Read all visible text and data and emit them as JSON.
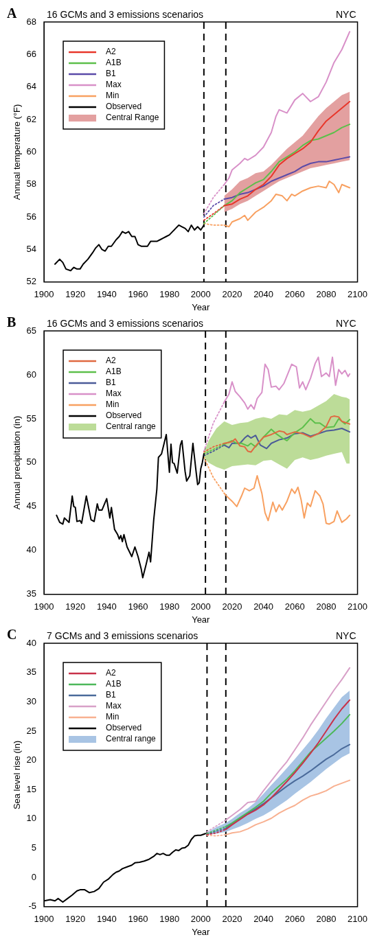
{
  "chart_data": [
    {
      "type": "line",
      "title": "16 GCMs and 3 emissions scenarios",
      "subtitle": "NYC",
      "annotations": [
        "A"
      ],
      "xlabel": "Year",
      "ylabel": "Annual temperature (°F)",
      "xlim": [
        1900,
        2100
      ],
      "xticks": [
        1900,
        1920,
        1940,
        1960,
        1980,
        2000,
        2020,
        2040,
        2060,
        2080,
        2100
      ],
      "ylim": [
        52,
        68
      ],
      "yticks": [
        52,
        54,
        56,
        58,
        60,
        62,
        64,
        66,
        68
      ],
      "legend": "top left",
      "ref_lines": [
        {
          "axis": "x",
          "value": 2002,
          "line_style": "dashed",
          "color": "#000000"
        },
        {
          "axis": "x",
          "value": 2016,
          "line_style": "dashed",
          "color": "#000000"
        }
      ],
      "series": [
        {
          "name": "A2",
          "color": "#e8362a",
          "x": [
            2015,
            2020,
            2025,
            2030,
            2035,
            2040,
            2045,
            2050,
            2055,
            2060,
            2065,
            2070,
            2075,
            2080,
            2085,
            2090,
            2095
          ],
          "values": [
            56.7,
            56.8,
            57.1,
            57.3,
            57.7,
            58.0,
            58.5,
            59.2,
            59.6,
            59.9,
            60.2,
            60.6,
            61.3,
            61.9,
            62.3,
            62.7,
            63.1
          ]
        },
        {
          "name": "A1B",
          "color": "#5cbf4a",
          "x": [
            2015,
            2020,
            2025,
            2030,
            2035,
            2040,
            2045,
            2050,
            2055,
            2060,
            2065,
            2070,
            2075,
            2080,
            2085,
            2090,
            2095
          ],
          "values": [
            56.7,
            57.0,
            57.5,
            57.8,
            58.1,
            58.3,
            58.8,
            59.4,
            59.7,
            60.0,
            60.4,
            60.7,
            60.8,
            61.0,
            61.2,
            61.5,
            61.7
          ]
        },
        {
          "name": "B1",
          "color": "#5a4aa8",
          "x": [
            2015,
            2020,
            2025,
            2030,
            2035,
            2040,
            2045,
            2050,
            2055,
            2060,
            2065,
            2070,
            2075,
            2080,
            2085,
            2090,
            2095
          ],
          "values": [
            57.1,
            57.2,
            57.4,
            57.5,
            57.7,
            57.9,
            58.2,
            58.4,
            58.6,
            58.8,
            59.1,
            59.3,
            59.4,
            59.4,
            59.5,
            59.6,
            59.7
          ]
        },
        {
          "name": "Max",
          "color": "#d890c8",
          "x": [
            2015,
            2018,
            2020,
            2025,
            2028,
            2030,
            2035,
            2040,
            2045,
            2048,
            2050,
            2055,
            2060,
            2065,
            2070,
            2075,
            2080,
            2085,
            2090,
            2095
          ],
          "values": [
            58.0,
            58.4,
            58.9,
            59.3,
            59.6,
            59.5,
            59.8,
            60.3,
            61.2,
            62.2,
            62.6,
            62.4,
            63.2,
            63.6,
            63.1,
            63.4,
            64.3,
            65.5,
            66.3,
            67.4
          ]
        },
        {
          "name": "Min",
          "color": "#f8a060",
          "x": [
            2015,
            2018,
            2020,
            2025,
            2028,
            2030,
            2035,
            2040,
            2045,
            2048,
            2052,
            2055,
            2058,
            2060,
            2065,
            2070,
            2075,
            2080,
            2082,
            2085,
            2088,
            2090,
            2095
          ],
          "values": [
            55.5,
            55.4,
            55.7,
            55.9,
            56.1,
            55.8,
            56.3,
            56.6,
            57.0,
            57.4,
            57.3,
            57.0,
            57.4,
            57.3,
            57.6,
            57.8,
            57.9,
            57.8,
            58.2,
            58.0,
            57.5,
            58.0,
            57.8
          ]
        },
        {
          "name": "Observed",
          "color": "#000000",
          "x": [
            1907,
            1910,
            1912,
            1914,
            1917,
            1919,
            1921,
            1923,
            1925,
            1928,
            1931,
            1933,
            1935,
            1937,
            1939,
            1941,
            1943,
            1946,
            1948,
            1950,
            1952,
            1954,
            1956,
            1958,
            1960,
            1962,
            1964,
            1966,
            1968,
            1970,
            1972,
            1974,
            1976,
            1978,
            1980,
            1982,
            1984,
            1986,
            1988,
            1990,
            1992,
            1994,
            1996,
            1998,
            2000,
            2002
          ],
          "values": [
            53.1,
            53.4,
            53.2,
            52.8,
            52.7,
            52.9,
            52.8,
            52.8,
            53.1,
            53.4,
            53.8,
            54.1,
            54.3,
            54.0,
            53.9,
            54.2,
            54.2,
            54.6,
            54.8,
            55.1,
            55.0,
            55.1,
            54.8,
            54.8,
            54.3,
            54.2,
            54.2,
            54.2,
            54.5,
            54.5,
            54.5,
            54.6,
            54.7,
            54.8,
            54.9,
            55.1,
            55.3,
            55.5,
            55.4,
            55.3,
            55.1,
            55.5,
            55.2,
            55.4,
            55.2,
            55.5
          ]
        },
        {
          "name": "Central Range",
          "type": "area",
          "color": "#e3a0a0",
          "x": [
            2015,
            2020,
            2025,
            2030,
            2035,
            2040,
            2045,
            2050,
            2055,
            2060,
            2065,
            2070,
            2075,
            2080,
            2085,
            2090,
            2095
          ],
          "values": [
            null,
            null,
            null,
            null,
            null,
            null,
            null,
            null,
            null,
            null,
            null,
            null,
            null,
            null,
            null,
            null,
            null
          ],
          "lower": [
            56.3,
            56.5,
            56.8,
            57.0,
            57.3,
            57.6,
            57.9,
            58.2,
            58.4,
            58.6,
            58.8,
            59.0,
            59.1,
            59.2,
            59.3,
            59.4,
            59.5
          ],
          "upper": [
            57.3,
            57.7,
            58.2,
            58.4,
            58.7,
            58.8,
            59.2,
            59.7,
            60.2,
            60.6,
            61.0,
            61.6,
            62.2,
            62.7,
            63.1,
            63.5,
            63.7
          ]
        },
        {
          "color": "#e8362a",
          "line_style": "dotted",
          "x": [
            2002,
            2008,
            2015
          ],
          "values": [
            55.8,
            56.2,
            56.7
          ]
        },
        {
          "color": "#5cbf4a",
          "line_style": "dotted",
          "x": [
            2002,
            2008,
            2015
          ],
          "values": [
            55.6,
            56.1,
            56.7
          ]
        },
        {
          "color": "#5a4aa8",
          "line_style": "dotted",
          "x": [
            2002,
            2008,
            2015
          ],
          "values": [
            56.0,
            56.7,
            57.1
          ]
        },
        {
          "color": "#d890c8",
          "line_style": "dotted",
          "x": [
            2002,
            2008,
            2015
          ],
          "values": [
            56.2,
            57.2,
            58.0
          ]
        },
        {
          "color": "#f8a060",
          "line_style": "dotted",
          "x": [
            2002,
            2008,
            2015
          ],
          "values": [
            55.6,
            55.5,
            55.5
          ]
        }
      ]
    },
    {
      "type": "line",
      "title": "16 GCMs and 3 emissions scenarios",
      "subtitle": "NYC",
      "annotations": [
        "B"
      ],
      "xlabel": "Year",
      "ylabel": "Annual precipitation (in)",
      "xlim": [
        1900,
        2100
      ],
      "xticks": [
        1900,
        1920,
        1940,
        1960,
        1980,
        2000,
        2020,
        2040,
        2060,
        2080,
        2100
      ],
      "ylim": [
        35,
        65
      ],
      "yticks": [
        35,
        40,
        45,
        50,
        55,
        60,
        65
      ],
      "legend": "top left",
      "ref_lines": [
        {
          "axis": "x",
          "value": 2003,
          "line_style": "dashed",
          "color": "#000000"
        },
        {
          "axis": "x",
          "value": 2016,
          "line_style": "dashed",
          "color": "#000000"
        }
      ],
      "series": [
        {
          "name": "A2",
          "color": "#e06840",
          "x": [
            2015,
            2018,
            2020,
            2022,
            2025,
            2028,
            2030,
            2032,
            2035,
            2040,
            2045,
            2050,
            2053,
            2055,
            2060,
            2065,
            2070,
            2075,
            2080,
            2083,
            2085,
            2088,
            2090,
            2095
          ],
          "values": [
            52.2,
            52.3,
            52.4,
            52.7,
            51.9,
            51.8,
            51.3,
            51.2,
            51.9,
            52.9,
            53.2,
            53.6,
            53.5,
            53.2,
            53.5,
            53.3,
            52.9,
            53.3,
            54.1,
            55.2,
            55.3,
            55.2,
            54.7,
            54.4
          ]
        },
        {
          "name": "A1B",
          "color": "#5cbf4a",
          "x": [
            2015,
            2020,
            2023,
            2026,
            2030,
            2032,
            2035,
            2040,
            2045,
            2048,
            2052,
            2055,
            2060,
            2065,
            2070,
            2073,
            2076,
            2080,
            2085,
            2088,
            2092,
            2095
          ],
          "values": [
            52.1,
            52.5,
            52.2,
            52.2,
            51.9,
            52.2,
            51.8,
            52.9,
            53.8,
            53.3,
            52.8,
            52.5,
            53.4,
            54.0,
            55.0,
            54.5,
            54.5,
            54.0,
            54.1,
            55.0,
            54.4,
            54.9
          ]
        },
        {
          "name": "B1",
          "color": "#4a5a98",
          "x": [
            2015,
            2018,
            2020,
            2025,
            2028,
            2030,
            2032,
            2035,
            2038,
            2042,
            2045,
            2050,
            2055,
            2060,
            2065,
            2070,
            2075,
            2080,
            2085,
            2090,
            2095
          ],
          "values": [
            52.0,
            51.7,
            52.2,
            52.2,
            52.8,
            53.1,
            52.8,
            53.1,
            52.0,
            51.6,
            52.2,
            52.6,
            52.8,
            53.3,
            53.4,
            53.0,
            53.3,
            53.6,
            53.7,
            53.9,
            53.5
          ]
        },
        {
          "name": "Max",
          "color": "#d890c8",
          "x": [
            2015,
            2018,
            2020,
            2022,
            2025,
            2028,
            2030,
            2032,
            2034,
            2036,
            2039,
            2041,
            2043,
            2045,
            2048,
            2050,
            2053,
            2058,
            2061,
            2063,
            2065,
            2067,
            2070,
            2073,
            2075,
            2077,
            2080,
            2082,
            2084,
            2086,
            2088,
            2090,
            2092,
            2094,
            2095
          ],
          "values": [
            56.9,
            57.8,
            59.2,
            58.1,
            57.5,
            56.8,
            56.1,
            56.6,
            56.1,
            57.3,
            58.0,
            61.2,
            60.6,
            58.6,
            58.7,
            58.3,
            59.0,
            61.2,
            60.9,
            58.5,
            59.2,
            58.3,
            59.6,
            61.3,
            62.0,
            59.8,
            60.2,
            59.8,
            62.0,
            58.8,
            60.6,
            60.1,
            60.5,
            59.8,
            60.1
          ]
        },
        {
          "name": "Min",
          "color": "#f8a060",
          "x": [
            2015,
            2017,
            2020,
            2023,
            2026,
            2028,
            2031,
            2034,
            2036,
            2039,
            2041,
            2043,
            2046,
            2048,
            2050,
            2052,
            2055,
            2058,
            2060,
            2062,
            2064,
            2066,
            2068,
            2070,
            2073,
            2076,
            2078,
            2080,
            2082,
            2085,
            2087,
            2090,
            2093,
            2095
          ],
          "values": [
            46.5,
            46.1,
            45.6,
            45.0,
            46.2,
            47.1,
            46.8,
            47.1,
            48.5,
            46.5,
            44.3,
            43.4,
            45.5,
            44.4,
            45.2,
            44.6,
            45.6,
            47.0,
            46.5,
            47.2,
            45.8,
            43.7,
            45.4,
            45.0,
            46.8,
            46.2,
            45.3,
            43.1,
            43.0,
            43.3,
            44.5,
            43.2,
            43.6,
            44.0
          ]
        },
        {
          "name": "Observed",
          "color": "#000000",
          "x": [
            1908,
            1910,
            1912,
            1913,
            1916,
            1918,
            1919,
            1920,
            1921,
            1923,
            1924,
            1927,
            1930,
            1932,
            1934,
            1935,
            1937,
            1940,
            1942,
            1943,
            1945,
            1947,
            1948,
            1949,
            1950,
            1951,
            1953,
            1956,
            1958,
            1960,
            1962,
            1963,
            1965,
            1967,
            1968,
            1970,
            1972,
            1973,
            1975,
            1978,
            1980,
            1981,
            1982,
            1983,
            1985,
            1987,
            1988,
            1990,
            1991,
            1993,
            1995,
            1997,
            1998,
            1999,
            2000,
            2001,
            2002
          ],
          "values": [
            44.0,
            43.2,
            43.0,
            43.7,
            43.2,
            46.2,
            45.0,
            44.9,
            43.3,
            43.4,
            43.1,
            46.2,
            43.5,
            43.3,
            45.3,
            44.6,
            44.6,
            45.9,
            43.7,
            44.9,
            42.4,
            41.8,
            41.3,
            41.7,
            41.0,
            41.8,
            40.4,
            39.3,
            40.4,
            39.3,
            37.9,
            36.9,
            38.3,
            39.8,
            38.7,
            43.5,
            47.0,
            50.6,
            51.0,
            53.2,
            48.9,
            52.1,
            50.0,
            49.9,
            48.8,
            52.0,
            52.5,
            49.0,
            47.9,
            48.5,
            52.2,
            49.0,
            47.5,
            47.7,
            49.3,
            50.0,
            51.0
          ]
        },
        {
          "name": "Central range",
          "type": "area",
          "color": "#bcdc98",
          "x": [
            2002,
            2005,
            2010,
            2015,
            2020,
            2025,
            2030,
            2035,
            2040,
            2045,
            2050,
            2055,
            2060,
            2065,
            2070,
            2075,
            2080,
            2085,
            2090,
            2093,
            2095
          ],
          "values": [
            null,
            null,
            null,
            null,
            null,
            null,
            null,
            null,
            null,
            null,
            null,
            null,
            null,
            null,
            null,
            null,
            null,
            null,
            null,
            null,
            null
          ],
          "lower": [
            50.6,
            50.0,
            49.5,
            49.2,
            49.6,
            49.7,
            49.8,
            49.7,
            50.2,
            50.3,
            49.8,
            49.3,
            50.3,
            50.6,
            50.3,
            50.5,
            50.8,
            51.0,
            51.2,
            49.9,
            49.9
          ],
          "upper": [
            51.2,
            52.5,
            53.9,
            54.7,
            54.3,
            54.5,
            54.6,
            55.0,
            55.2,
            55.0,
            55.5,
            55.4,
            56.0,
            55.8,
            56.0,
            56.5,
            57.0,
            57.8,
            57.5,
            57.4,
            57.2
          ]
        },
        {
          "color": "#e06840",
          "line_style": "dotted",
          "x": [
            2002,
            2008,
            2015
          ],
          "values": [
            51.2,
            51.8,
            52.2
          ]
        },
        {
          "color": "#5cbf4a",
          "line_style": "dotted",
          "x": [
            2002,
            2008,
            2015
          ],
          "values": [
            51.0,
            51.5,
            52.1
          ]
        },
        {
          "color": "#4a5a98",
          "line_style": "dotted",
          "x": [
            2002,
            2008,
            2015
          ],
          "values": [
            50.8,
            51.3,
            52.0
          ]
        },
        {
          "color": "#d890c8",
          "line_style": "dotted",
          "x": [
            2002,
            2008,
            2015
          ],
          "values": [
            51.3,
            54.5,
            56.9
          ]
        },
        {
          "color": "#f8a060",
          "line_style": "dotted",
          "x": [
            2002,
            2008,
            2015
          ],
          "values": [
            50.6,
            48.3,
            46.5
          ]
        }
      ]
    },
    {
      "type": "line",
      "title": "7 GCMs and 3 emissions scenarios",
      "subtitle": "NYC",
      "annotations": [
        "C"
      ],
      "xlabel": "Year",
      "ylabel": "Sea level rise (in)",
      "xlim": [
        1900,
        2100
      ],
      "xticks": [
        1900,
        1920,
        1940,
        1960,
        1980,
        2000,
        2020,
        2040,
        2060,
        2080,
        2100
      ],
      "ylim": [
        -5,
        40
      ],
      "yticks": [
        -5,
        0,
        5,
        10,
        15,
        20,
        25,
        30,
        35,
        40
      ],
      "legend": "top left",
      "ref_lines": [
        {
          "axis": "x",
          "value": 2004,
          "line_style": "dashed",
          "color": "#000000"
        },
        {
          "axis": "x",
          "value": 2016,
          "line_style": "dashed",
          "color": "#000000"
        }
      ],
      "series": [
        {
          "name": "A2",
          "color": "#c8324a",
          "x": [
            2016,
            2020,
            2025,
            2030,
            2035,
            2040,
            2045,
            2050,
            2055,
            2060,
            2065,
            2070,
            2075,
            2080,
            2085,
            2090,
            2095
          ],
          "values": [
            8.2,
            9.0,
            9.9,
            10.8,
            11.5,
            12.4,
            13.6,
            15.0,
            16.4,
            17.9,
            19.5,
            21.2,
            23.0,
            25.0,
            27.0,
            28.8,
            30.3
          ]
        },
        {
          "name": "A1B",
          "color": "#4cb85a",
          "x": [
            2016,
            2020,
            2025,
            2030,
            2035,
            2040,
            2045,
            2050,
            2055,
            2060,
            2065,
            2070,
            2075,
            2080,
            2085,
            2090,
            2095
          ],
          "values": [
            8.7,
            9.3,
            10.2,
            11.1,
            12.0,
            13.0,
            14.4,
            15.6,
            16.8,
            18.2,
            19.8,
            21.4,
            22.6,
            23.8,
            25.0,
            26.3,
            27.8
          ]
        },
        {
          "name": "B1",
          "color": "#4a6a9a",
          "x": [
            2016,
            2020,
            2025,
            2030,
            2035,
            2040,
            2045,
            2050,
            2055,
            2060,
            2065,
            2070,
            2075,
            2080,
            2085,
            2090,
            2095
          ],
          "values": [
            8.4,
            9.2,
            10.1,
            10.9,
            11.7,
            12.6,
            13.6,
            14.6,
            15.6,
            16.5,
            17.3,
            18.2,
            19.2,
            20.2,
            21.0,
            22.0,
            22.7
          ]
        },
        {
          "name": "Max",
          "color": "#d8a0c8",
          "x": [
            2016,
            2020,
            2025,
            2030,
            2035,
            2040,
            2045,
            2050,
            2055,
            2060,
            2065,
            2070,
            2075,
            2080,
            2085,
            2090,
            2095
          ],
          "values": [
            9.8,
            10.6,
            11.6,
            12.8,
            13.0,
            14.8,
            16.5,
            18.2,
            19.8,
            21.8,
            23.8,
            26.0,
            28.0,
            30.0,
            32.0,
            33.8,
            35.8
          ]
        },
        {
          "name": "Min",
          "color": "#f8b090",
          "x": [
            2016,
            2020,
            2025,
            2030,
            2035,
            2040,
            2045,
            2050,
            2055,
            2060,
            2065,
            2070,
            2075,
            2080,
            2085,
            2090,
            2095
          ],
          "values": [
            7.3,
            7.6,
            7.8,
            8.3,
            9.0,
            9.5,
            10.1,
            11.0,
            11.7,
            12.3,
            13.2,
            13.9,
            14.3,
            14.8,
            15.6,
            16.1,
            16.6
          ]
        },
        {
          "name": "Observed",
          "color": "#000000",
          "x": [
            1900,
            1904,
            1907,
            1909,
            1912,
            1915,
            1918,
            1921,
            1923,
            1926,
            1929,
            1932,
            1935,
            1938,
            1941,
            1944,
            1946,
            1948,
            1950,
            1953,
            1956,
            1958,
            1961,
            1964,
            1967,
            1970,
            1972,
            1974,
            1976,
            1978,
            1980,
            1982,
            1984,
            1986,
            1988,
            1990,
            1992,
            1994,
            1996,
            1998,
            2000,
            2003
          ],
          "values": [
            -4.0,
            -3.8,
            -4.0,
            -3.6,
            -4.2,
            -3.6,
            -3.0,
            -2.3,
            -2.1,
            -2.1,
            -2.6,
            -2.4,
            -1.9,
            -0.8,
            -0.3,
            0.5,
            0.9,
            1.1,
            1.5,
            1.8,
            2.1,
            2.5,
            2.6,
            2.8,
            3.1,
            3.6,
            4.1,
            3.9,
            4.1,
            3.8,
            3.8,
            4.3,
            4.7,
            4.6,
            5.0,
            5.1,
            5.5,
            6.5,
            7.1,
            7.2,
            7.2,
            7.5
          ]
        },
        {
          "name": "Central range",
          "type": "area",
          "color": "#a8c4e4",
          "x": [
            2004,
            2010,
            2016,
            2020,
            2025,
            2030,
            2035,
            2040,
            2045,
            2050,
            2055,
            2060,
            2065,
            2070,
            2075,
            2080,
            2085,
            2090,
            2095
          ],
          "values": [
            null,
            null,
            null,
            null,
            null,
            null,
            null,
            null,
            null,
            null,
            null,
            null,
            null,
            null,
            null,
            null,
            null,
            null,
            null
          ],
          "lower": [
            7.3,
            7.5,
            7.8,
            8.2,
            8.7,
            9.3,
            10.0,
            10.6,
            11.4,
            12.3,
            13.2,
            14.3,
            15.3,
            16.3,
            17.4,
            18.5,
            19.5,
            20.5,
            21.2
          ],
          "upper": [
            7.7,
            8.6,
            9.3,
            10.0,
            11.0,
            11.8,
            12.9,
            14.3,
            15.8,
            17.2,
            18.7,
            20.2,
            21.8,
            23.4,
            25.2,
            27.2,
            29.0,
            30.8,
            31.9
          ]
        },
        {
          "color": "#c8324a",
          "line_style": "dotted",
          "x": [
            2004,
            2010,
            2016
          ],
          "values": [
            7.3,
            7.6,
            8.2
          ]
        },
        {
          "color": "#4cb85a",
          "line_style": "dotted",
          "x": [
            2004,
            2010,
            2016
          ],
          "values": [
            7.5,
            8.1,
            8.7
          ]
        },
        {
          "color": "#4a6a9a",
          "line_style": "dotted",
          "x": [
            2004,
            2010,
            2016
          ],
          "values": [
            7.4,
            7.9,
            8.4
          ]
        },
        {
          "color": "#d8a0c8",
          "line_style": "dotted",
          "x": [
            2004,
            2010,
            2016
          ],
          "values": [
            7.8,
            8.8,
            9.8
          ]
        },
        {
          "color": "#f8b090",
          "line_style": "dotted",
          "x": [
            2004,
            2010,
            2016
          ],
          "values": [
            7.2,
            7.1,
            7.3
          ]
        }
      ]
    }
  ]
}
